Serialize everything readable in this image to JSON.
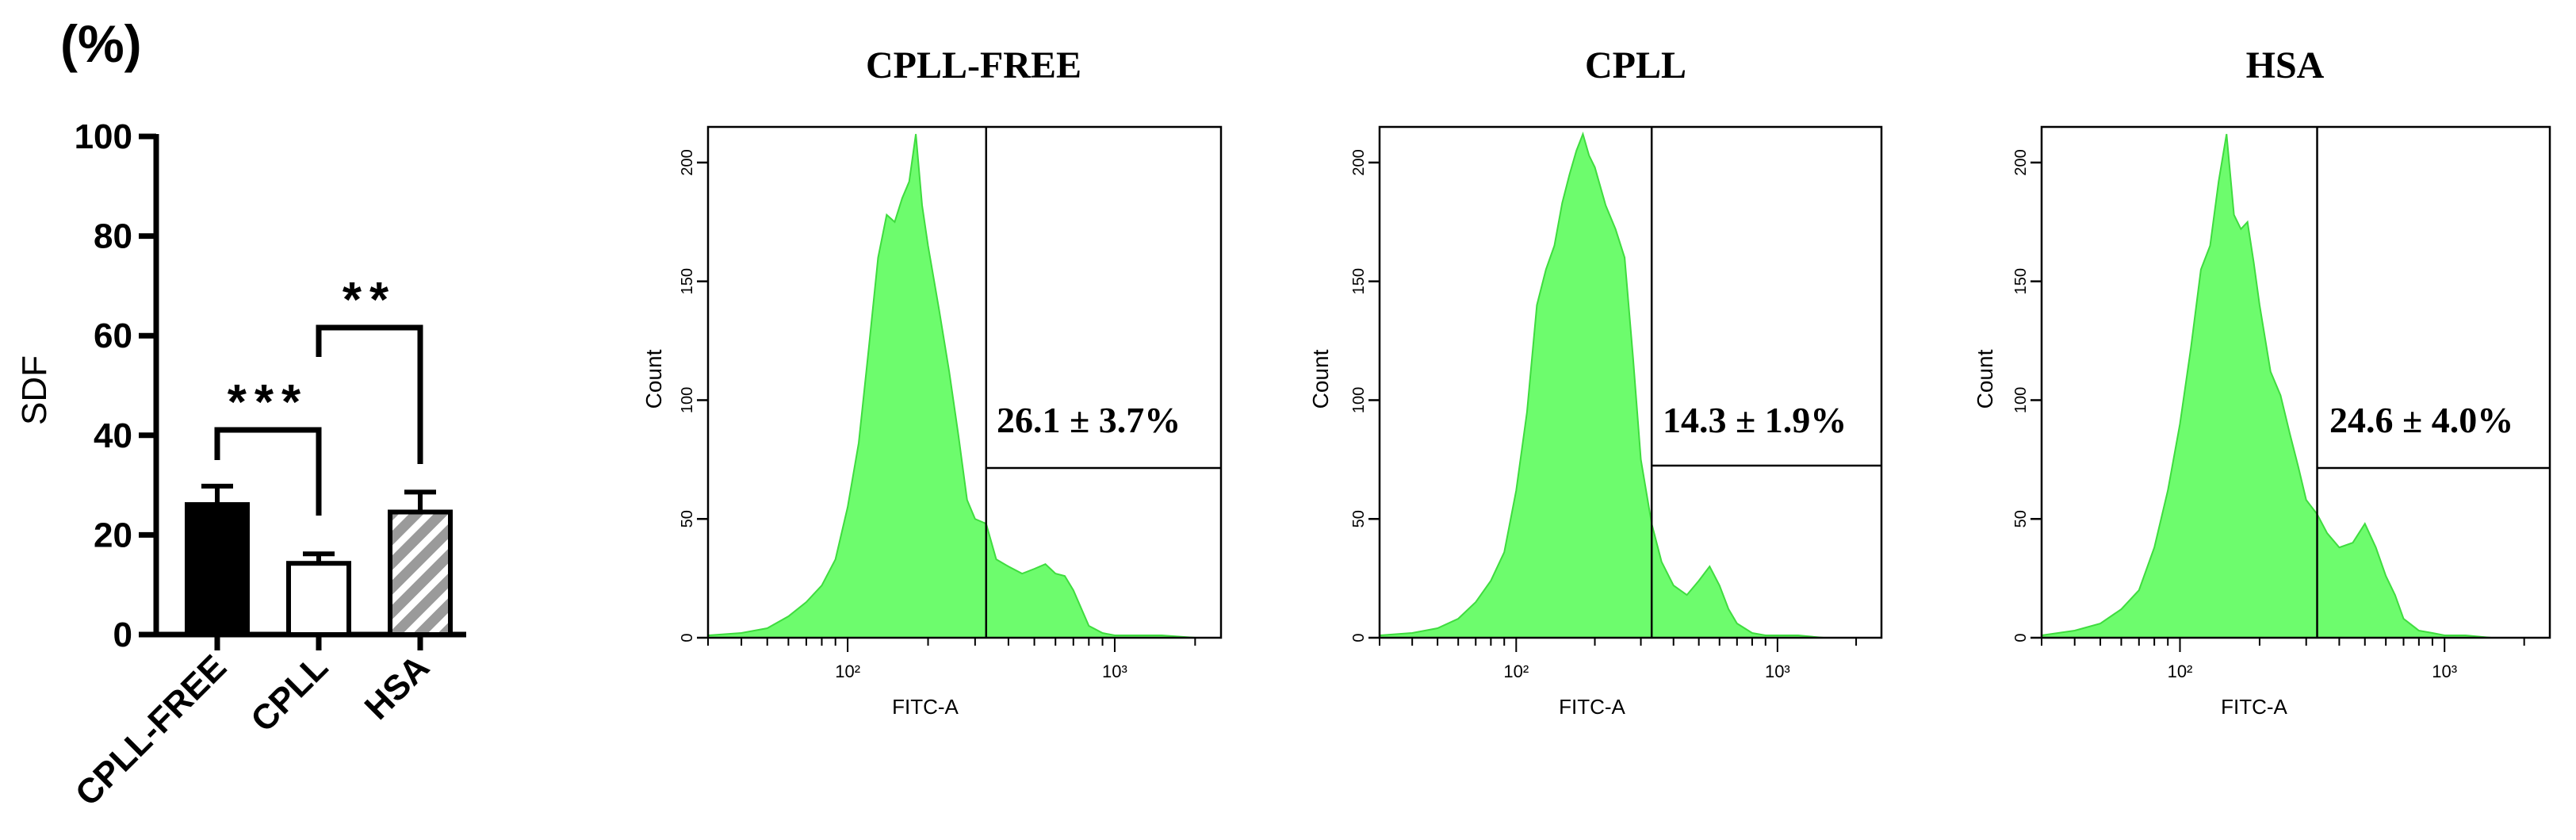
{
  "bar_panel": {
    "unit_label": "(%)",
    "ylabel": "SDF",
    "yticks": [
      "0",
      "20",
      "40",
      "60",
      "80",
      "100"
    ],
    "significance": [
      {
        "from": 0,
        "to": 1,
        "label": "***"
      },
      {
        "from": 1,
        "to": 2,
        "label": "**"
      }
    ]
  },
  "histograms": [
    {
      "title": "CPLL-FREE",
      "xlabel": "FITC-A",
      "ylabel": "Count",
      "yticks": [
        "0",
        "50",
        "100",
        "150",
        "200"
      ],
      "xticks": [
        "10²",
        "10³"
      ],
      "gate_label": "26.1 ± 3.7%"
    },
    {
      "title": "CPLL",
      "xlabel": "FITC-A",
      "ylabel": "Count",
      "yticks": [
        "0",
        "50",
        "100",
        "150",
        "200"
      ],
      "xticks": [
        "10²",
        "10³"
      ],
      "gate_label": "14.3 ± 1.9%"
    },
    {
      "title": "HSA",
      "xlabel": "FITC-A",
      "ylabel": "Count",
      "yticks": [
        "0",
        "50",
        "100",
        "150",
        "200"
      ],
      "xticks": [
        "10²",
        "10³"
      ],
      "gate_label": "24.6 ± 4.0%"
    }
  ],
  "colors": {
    "histogram_fill": "#6dfc6d",
    "histogram_edge": "#3fdc3f",
    "axis": "#000000"
  },
  "chart_data": [
    {
      "type": "bar",
      "categories": [
        "CPLL-FREE",
        "CPLL",
        "HSA"
      ],
      "values": [
        26.1,
        14.3,
        24.6
      ],
      "errors": [
        3.7,
        1.9,
        4.0
      ],
      "fills": [
        "solid-black",
        "white",
        "hatched-gray"
      ],
      "ylabel": "SDF",
      "ylim": [
        0,
        100
      ]
    },
    {
      "type": "area",
      "title": "CPLL-FREE",
      "xlabel": "FITC-A",
      "ylabel": "Count",
      "xscale": "log",
      "xlim": [
        30,
        2500
      ],
      "ylim": [
        0,
        215
      ],
      "gate_x": 330,
      "gate_percent": 26.1,
      "x": [
        30,
        40,
        50,
        60,
        70,
        80,
        90,
        100,
        110,
        120,
        130,
        140,
        150,
        160,
        170,
        180,
        190,
        200,
        220,
        240,
        260,
        280,
        300,
        330,
        360,
        400,
        450,
        500,
        550,
        600,
        650,
        700,
        800,
        900,
        1000,
        1200,
        1500,
        2000,
        2500
      ],
      "y": [
        1,
        2,
        4,
        9,
        15,
        22,
        33,
        55,
        82,
        122,
        160,
        178,
        175,
        185,
        192,
        212,
        182,
        165,
        138,
        112,
        85,
        58,
        50,
        48,
        33,
        30,
        27,
        29,
        31,
        27,
        26,
        20,
        5,
        2,
        1,
        1,
        1,
        0,
        0
      ]
    },
    {
      "type": "area",
      "title": "CPLL",
      "xlabel": "FITC-A",
      "ylabel": "Count",
      "xscale": "log",
      "xlim": [
        30,
        2500
      ],
      "ylim": [
        0,
        215
      ],
      "gate_x": 330,
      "gate_percent": 14.3,
      "x": [
        30,
        40,
        50,
        60,
        70,
        80,
        90,
        100,
        110,
        120,
        130,
        140,
        150,
        160,
        170,
        180,
        190,
        200,
        220,
        240,
        260,
        280,
        300,
        330,
        360,
        400,
        450,
        500,
        550,
        600,
        650,
        700,
        800,
        900,
        1000,
        1200,
        1500,
        2000,
        2500
      ],
      "y": [
        1,
        2,
        4,
        8,
        15,
        24,
        36,
        62,
        95,
        140,
        155,
        165,
        183,
        195,
        205,
        212,
        203,
        198,
        182,
        172,
        160,
        118,
        75,
        48,
        32,
        22,
        18,
        24,
        30,
        22,
        12,
        6,
        2,
        1,
        1,
        1,
        0,
        0,
        0
      ]
    },
    {
      "type": "area",
      "title": "HSA",
      "xlabel": "FITC-A",
      "ylabel": "Count",
      "xscale": "log",
      "xlim": [
        30,
        2500
      ],
      "ylim": [
        0,
        215
      ],
      "gate_x": 330,
      "gate_percent": 24.6,
      "x": [
        30,
        40,
        50,
        60,
        70,
        80,
        90,
        100,
        110,
        120,
        130,
        140,
        150,
        160,
        170,
        180,
        190,
        200,
        220,
        240,
        260,
        280,
        300,
        330,
        360,
        400,
        450,
        500,
        550,
        600,
        650,
        700,
        800,
        900,
        1000,
        1200,
        1500,
        2000,
        2500
      ],
      "y": [
        1,
        3,
        6,
        12,
        20,
        38,
        62,
        90,
        122,
        155,
        165,
        192,
        212,
        178,
        172,
        175,
        158,
        140,
        112,
        102,
        86,
        72,
        58,
        52,
        44,
        38,
        40,
        48,
        38,
        26,
        18,
        8,
        3,
        2,
        1,
        1,
        0,
        0,
        0
      ]
    }
  ]
}
